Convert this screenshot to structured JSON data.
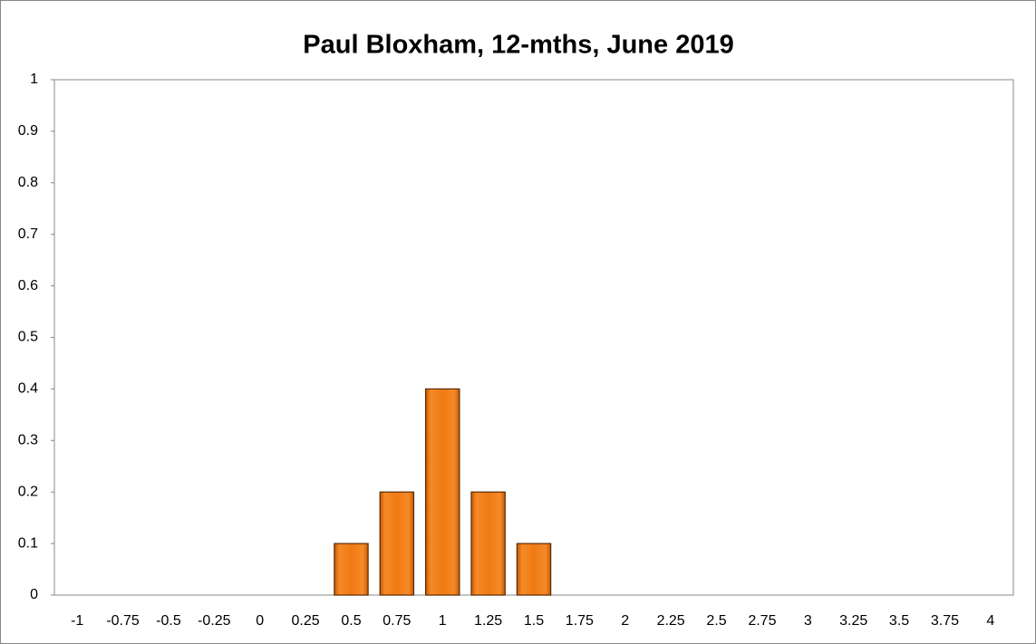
{
  "chart_data": {
    "type": "bar",
    "title": "Paul Bloxham, 12-mths, June 2019",
    "categories": [
      "-1",
      "-0.75",
      "-0.5",
      "-0.25",
      "0",
      "0.25",
      "0.5",
      "0.75",
      "1",
      "1.25",
      "1.5",
      "1.75",
      "2",
      "2.25",
      "2.5",
      "2.75",
      "3",
      "3.25",
      "3.5",
      "3.75",
      "4"
    ],
    "values": [
      0,
      0,
      0,
      0,
      0,
      0,
      0.1,
      0.2,
      0.4,
      0.2,
      0.1,
      0,
      0,
      0,
      0,
      0,
      0,
      0,
      0,
      0,
      0
    ],
    "color": "#f07a12",
    "ylim": [
      0,
      1
    ],
    "yticks": [
      0,
      0.1,
      0.2,
      0.3,
      0.4,
      0.5,
      0.6,
      0.7,
      0.8,
      0.9,
      1
    ],
    "grid": false
  }
}
